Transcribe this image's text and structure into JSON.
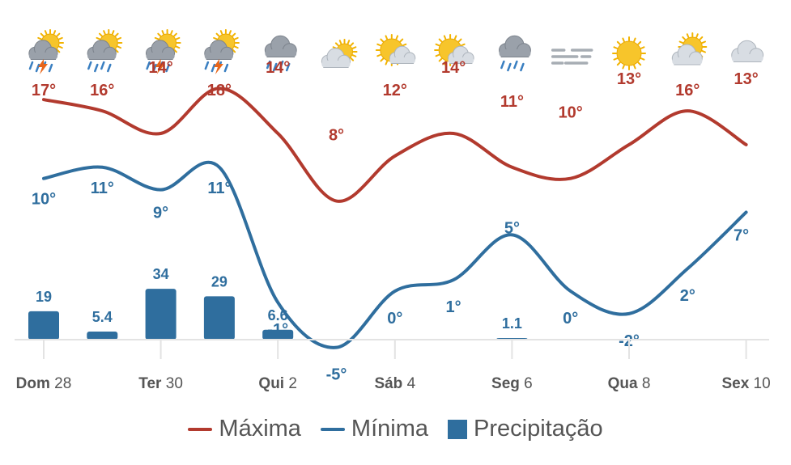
{
  "colors": {
    "max": "#b23a2e",
    "min": "#2f6e9e",
    "precip": "#2f6e9e",
    "axis": "#e3e3e3",
    "text": "#555555"
  },
  "chart_data": {
    "type": "line",
    "x_count": 13,
    "x_ticks": [
      {
        "index": 0,
        "day": "Dom",
        "num": "28"
      },
      {
        "index": 2,
        "day": "Ter",
        "num": "30"
      },
      {
        "index": 4,
        "day": "Qui",
        "num": "2"
      },
      {
        "index": 6,
        "day": "Sáb",
        "num": "4"
      },
      {
        "index": 8,
        "day": "Seg",
        "num": "6"
      },
      {
        "index": 10,
        "day": "Qua",
        "num": "8"
      },
      {
        "index": 12,
        "day": "Sex",
        "num": "10"
      }
    ],
    "icons": [
      "sun-cloud-rain-thunder-icon",
      "sun-cloud-rain-icon",
      "sun-cloud-rain-thunder-icon",
      "sun-cloud-rain-thunder-icon",
      "cloud-rain-icon",
      "sun-cloud-icon",
      "sun-cloud-icon",
      "sun-cloud-icon",
      "cloud-rain-icon",
      "fog-icon",
      "sun-icon",
      "sun-cloud-icon",
      "cloud-icon"
    ],
    "series": [
      {
        "name": "Máxima",
        "type": "line",
        "values": [
          17,
          16,
          14,
          18,
          14,
          8,
          12,
          14,
          11,
          10,
          13,
          16,
          13
        ],
        "labels": [
          "17°",
          "16°",
          "14°",
          "18°",
          "14°",
          "8°",
          "12°",
          "14°",
          "11°",
          "10°",
          "13°",
          "16°",
          "13°"
        ]
      },
      {
        "name": "Mínima",
        "type": "line",
        "values": [
          10,
          11,
          9,
          11,
          -1,
          -5,
          0,
          1,
          5,
          0,
          -2,
          2,
          7
        ],
        "labels": [
          "10°",
          "11°",
          "9°",
          "11°",
          "-1°",
          "-5°",
          "0°",
          "1°",
          "5°",
          "0°",
          "-2°",
          "2°",
          "7°"
        ]
      },
      {
        "name": "Precipitação",
        "type": "bar",
        "values": [
          19,
          5.4,
          34,
          29,
          6.6,
          0,
          0,
          0,
          1.1,
          0,
          0,
          0,
          0
        ],
        "labels": [
          "19",
          "5.4",
          "34",
          "29",
          "6.6",
          "",
          "",
          "",
          "1.1",
          "",
          "",
          "",
          ""
        ]
      }
    ],
    "legend": {
      "position": "bottom-center",
      "items": [
        "Máxima",
        "Mínima",
        "Precipitação"
      ]
    },
    "grid": false
  }
}
